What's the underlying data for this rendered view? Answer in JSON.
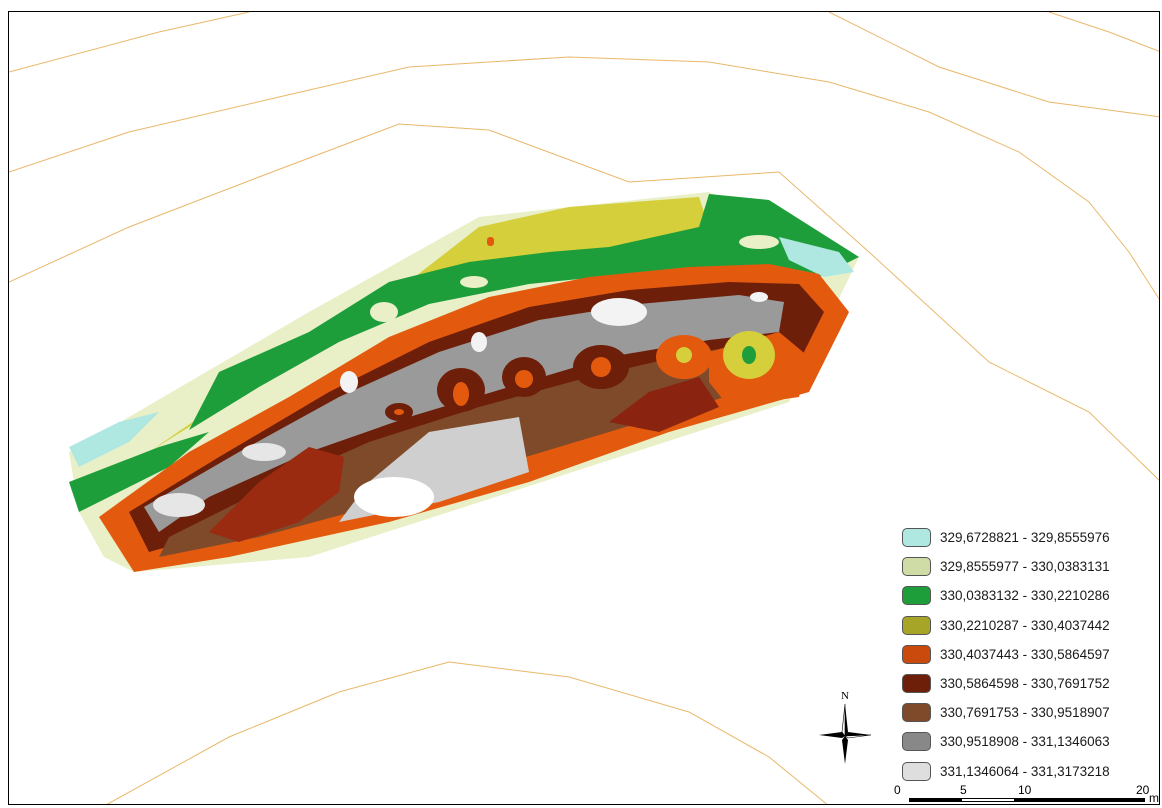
{
  "legend": {
    "items": [
      {
        "label": "329,6728821 - 329,8555976",
        "color": "#aee8e0"
      },
      {
        "label": "329,8555977 - 330,0383131",
        "color": "#cfdca6"
      },
      {
        "label": "330,0383132 - 330,2210286",
        "color": "#1e9e3a"
      },
      {
        "label": "330,2210287 - 330,4037442",
        "color": "#a6a527"
      },
      {
        "label": "330,4037443 - 330,5864597",
        "color": "#c94a0c"
      },
      {
        "label": "330,5864598 - 330,7691752",
        "color": "#6e1f0a"
      },
      {
        "label": "330,7691753 - 330,9518907",
        "color": "#7e4a2a"
      },
      {
        "label": "330,9518908 - 331,1346063",
        "color": "#888888"
      },
      {
        "label": "331,1346064 - 331,3173218",
        "color": "#dedede"
      }
    ]
  },
  "north_arrow": {
    "label": "N"
  },
  "scale_bar": {
    "ticks": [
      "0",
      "5",
      "10",
      "20"
    ],
    "unit": "m"
  },
  "colors": {
    "contour_line": "#e8b86a",
    "frame": "#000000"
  }
}
